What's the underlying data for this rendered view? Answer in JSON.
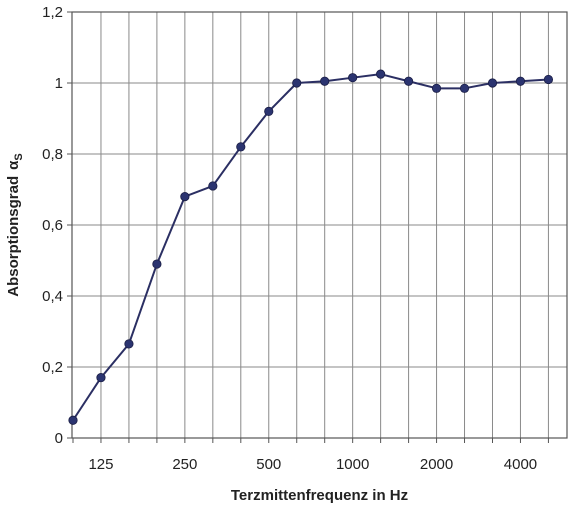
{
  "chart_data": {
    "type": "line",
    "xlabel": "Terzmittenfrequenz in Hz",
    "ylabel": "Absorptionsgrad",
    "ylabel_symbol": "α",
    "ylabel_subscript": "S",
    "x": [
      100,
      125,
      160,
      200,
      250,
      315,
      400,
      500,
      630,
      800,
      1000,
      1250,
      1600,
      2000,
      2500,
      3150,
      4000,
      5000
    ],
    "x_tick_labels": [
      "125",
      "250",
      "500",
      "1000",
      "2000",
      "4000"
    ],
    "y_tick_labels": [
      "0",
      "0,2",
      "0,4",
      "0,6",
      "0,8",
      "1",
      "1,2"
    ],
    "ylim": [
      0,
      1.2
    ],
    "grid": true,
    "series": [
      {
        "values": [
          0.05,
          0.17,
          0.265,
          0.49,
          0.68,
          0.71,
          0.82,
          0.92,
          1.0,
          1.005,
          1.015,
          1.025,
          1.005,
          0.985,
          0.985,
          1.0,
          1.005,
          1.01
        ]
      }
    ],
    "line_color": "#2b2f63",
    "marker_color": "#2b3470"
  }
}
